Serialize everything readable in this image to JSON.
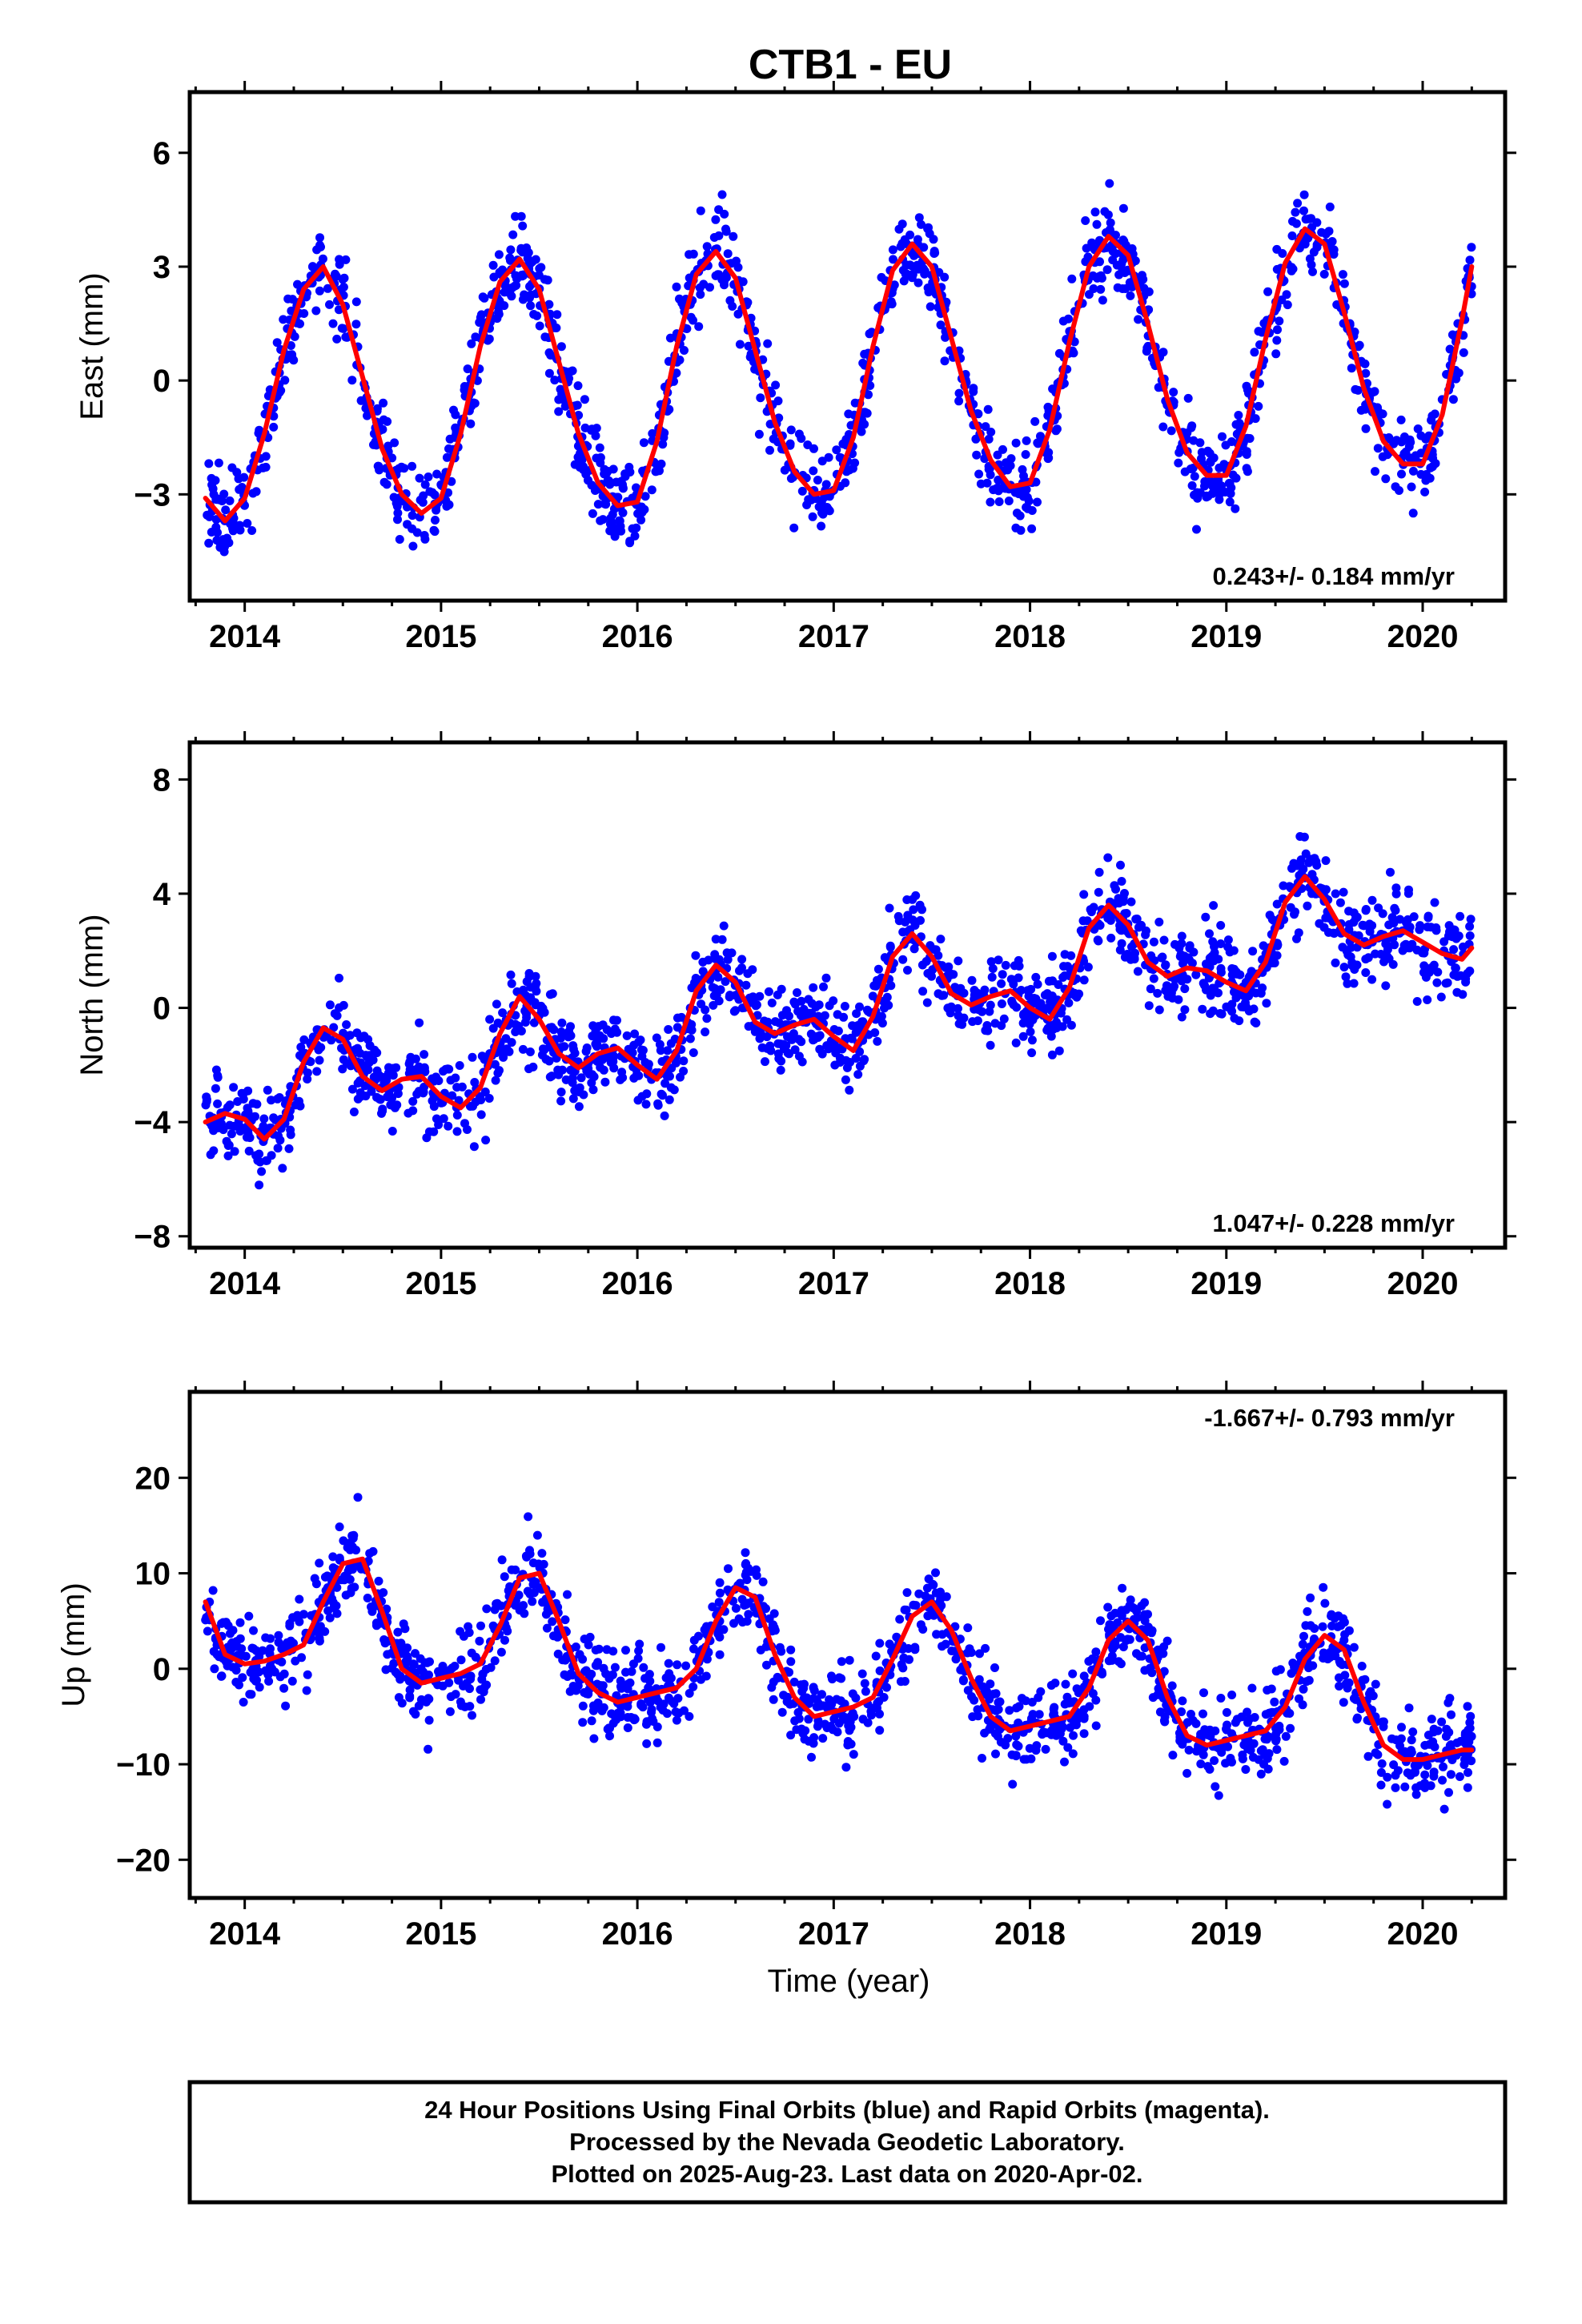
{
  "title": "CTB1 - EU",
  "x_axis_label": "Time (year)",
  "footer": {
    "line1": "24 Hour Positions Using Final Orbits (blue) and Rapid Orbits (magenta).",
    "line2": "Processed by the Nevada Geodetic Laboratory.",
    "line3": "Plotted on 2025-Aug-23. Last data on 2020-Apr-02."
  },
  "colors": {
    "data_points": "#0000ff",
    "model_fit": "#ff0000",
    "frame": "#000000"
  },
  "chart_data": [
    {
      "type": "scatter",
      "component": "East",
      "ylabel": "East (mm)",
      "xlim": [
        2013.72,
        2020.42
      ],
      "ylim": [
        -5.8,
        7.6
      ],
      "yticks": [
        -3,
        0,
        3,
        6
      ],
      "xticks": [
        2014,
        2015,
        2016,
        2017,
        2018,
        2019,
        2020
      ],
      "grid": false,
      "rate_text": "0.243+/- 0.184 mm/yr",
      "rate_position": "bottom-right",
      "series": [
        {
          "kind": "points",
          "x": [
            2013.8,
            2013.9,
            2014.0,
            2014.1,
            2014.2,
            2014.3,
            2014.4,
            2014.5,
            2014.6,
            2014.7,
            2014.8,
            2014.9,
            2015.0,
            2015.1,
            2015.2,
            2015.3,
            2015.4,
            2015.5,
            2015.6,
            2015.7,
            2015.8,
            2015.9,
            2016.0,
            2016.1,
            2016.2,
            2016.3,
            2016.4,
            2016.5,
            2016.6,
            2016.7,
            2016.8,
            2016.9,
            2017.0,
            2017.1,
            2017.2,
            2017.3,
            2017.4,
            2017.5,
            2017.6,
            2017.7,
            2017.8,
            2017.9,
            2018.0,
            2018.1,
            2018.2,
            2018.3,
            2018.4,
            2018.5,
            2018.6,
            2018.7,
            2018.8,
            2018.9,
            2019.0,
            2019.1,
            2019.2,
            2019.3,
            2019.4,
            2019.5,
            2019.6,
            2019.7,
            2019.8,
            2019.9,
            2020.0,
            2020.1,
            2020.2,
            2020.25
          ],
          "y": [
            -3.1,
            -3.7,
            -3.1,
            -1.4,
            0.8,
            2.4,
            3.0,
            2.0,
            0.1,
            -1.8,
            -3.0,
            -3.5,
            -3.1,
            -1.4,
            0.9,
            2.6,
            3.2,
            2.4,
            0.5,
            -1.4,
            -2.7,
            -3.3,
            -3.2,
            -1.6,
            0.9,
            2.8,
            3.4,
            2.7,
            0.8,
            -1.1,
            -2.4,
            -3.0,
            -2.9,
            -1.5,
            0.9,
            2.9,
            3.6,
            3.0,
            1.1,
            -0.8,
            -2.1,
            -2.8,
            -2.7,
            -1.3,
            1.0,
            3.0,
            3.8,
            3.3,
            1.5,
            -0.5,
            -1.9,
            -2.5,
            -2.5,
            -1.2,
            1.1,
            3.1,
            4.0,
            3.6,
            1.8,
            -0.2,
            -1.6,
            -2.2,
            -2.2,
            -0.9,
            1.6,
            3.0
          ]
        },
        {
          "kind": "model",
          "x": [
            2013.8,
            2013.9,
            2014.0,
            2014.1,
            2014.2,
            2014.3,
            2014.4,
            2014.5,
            2014.6,
            2014.7,
            2014.8,
            2014.9,
            2015.0,
            2015.1,
            2015.2,
            2015.3,
            2015.4,
            2015.5,
            2015.6,
            2015.7,
            2015.8,
            2015.9,
            2016.0,
            2016.1,
            2016.2,
            2016.3,
            2016.4,
            2016.5,
            2016.6,
            2016.7,
            2016.8,
            2016.9,
            2017.0,
            2017.1,
            2017.2,
            2017.3,
            2017.4,
            2017.5,
            2017.6,
            2017.7,
            2017.8,
            2017.9,
            2018.0,
            2018.1,
            2018.2,
            2018.3,
            2018.4,
            2018.5,
            2018.6,
            2018.7,
            2018.8,
            2018.9,
            2019.0,
            2019.1,
            2019.2,
            2019.3,
            2019.4,
            2019.5,
            2019.6,
            2019.7,
            2019.8,
            2019.9,
            2020.0,
            2020.1,
            2020.2,
            2020.25
          ],
          "y": [
            -3.1,
            -3.7,
            -3.1,
            -1.4,
            0.8,
            2.4,
            3.0,
            2.0,
            0.1,
            -1.8,
            -3.0,
            -3.5,
            -3.1,
            -1.4,
            0.9,
            2.6,
            3.2,
            2.4,
            0.5,
            -1.4,
            -2.7,
            -3.3,
            -3.2,
            -1.6,
            0.9,
            2.8,
            3.4,
            2.7,
            0.8,
            -1.1,
            -2.4,
            -3.0,
            -2.9,
            -1.5,
            0.9,
            2.9,
            3.6,
            3.0,
            1.1,
            -0.8,
            -2.1,
            -2.8,
            -2.7,
            -1.3,
            1.0,
            3.0,
            3.8,
            3.3,
            1.5,
            -0.5,
            -1.9,
            -2.5,
            -2.5,
            -1.2,
            1.1,
            3.1,
            4.0,
            3.6,
            1.8,
            -0.2,
            -1.6,
            -2.2,
            -2.2,
            -0.9,
            1.6,
            3.0
          ]
        }
      ]
    },
    {
      "type": "scatter",
      "component": "North",
      "ylabel": "North (mm)",
      "xlim": [
        2013.72,
        2020.42
      ],
      "ylim": [
        -8.4,
        9.3
      ],
      "yticks": [
        -8,
        -4,
        0,
        4,
        8
      ],
      "xticks": [
        2014,
        2015,
        2016,
        2017,
        2018,
        2019,
        2020
      ],
      "grid": false,
      "rate_text": "1.047+/- 0.228 mm/yr",
      "rate_position": "bottom-right",
      "series": [
        {
          "kind": "points",
          "x": [
            2013.8,
            2013.9,
            2014.0,
            2014.1,
            2014.2,
            2014.3,
            2014.4,
            2014.5,
            2014.6,
            2014.7,
            2014.8,
            2014.9,
            2015.0,
            2015.1,
            2015.2,
            2015.3,
            2015.4,
            2015.5,
            2015.6,
            2015.7,
            2015.8,
            2015.9,
            2016.0,
            2016.1,
            2016.2,
            2016.3,
            2016.4,
            2016.5,
            2016.6,
            2016.7,
            2016.8,
            2016.9,
            2017.0,
            2017.1,
            2017.2,
            2017.3,
            2017.4,
            2017.5,
            2017.6,
            2017.7,
            2017.8,
            2017.9,
            2018.0,
            2018.1,
            2018.2,
            2018.3,
            2018.4,
            2018.5,
            2018.6,
            2018.7,
            2018.8,
            2018.9,
            2019.0,
            2019.1,
            2019.2,
            2019.3,
            2019.4,
            2019.5,
            2019.6,
            2019.7,
            2019.8,
            2019.9,
            2020.0,
            2020.1,
            2020.2,
            2020.25
          ],
          "y": [
            -4.0,
            -3.7,
            -3.9,
            -4.6,
            -3.9,
            -1.9,
            -0.7,
            -1.1,
            -2.4,
            -2.9,
            -2.5,
            -2.4,
            -3.1,
            -3.5,
            -2.8,
            -0.9,
            0.4,
            -0.4,
            -1.6,
            -2.1,
            -1.6,
            -1.4,
            -2.0,
            -2.5,
            -1.5,
            0.6,
            1.5,
            0.9,
            -0.5,
            -0.9,
            -0.6,
            -0.4,
            -1.0,
            -1.5,
            -0.3,
            1.8,
            2.6,
            1.8,
            0.5,
            0.1,
            0.4,
            0.6,
            0.0,
            -0.4,
            0.7,
            2.8,
            3.6,
            2.9,
            1.6,
            1.1,
            1.4,
            1.3,
            0.9,
            0.6,
            1.6,
            3.7,
            4.6,
            3.8,
            2.6,
            2.2,
            2.5,
            2.7,
            2.3,
            1.9,
            1.7,
            2.1
          ]
        },
        {
          "kind": "model",
          "x": [
            2013.8,
            2013.9,
            2014.0,
            2014.1,
            2014.2,
            2014.3,
            2014.4,
            2014.5,
            2014.6,
            2014.7,
            2014.8,
            2014.9,
            2015.0,
            2015.1,
            2015.2,
            2015.3,
            2015.4,
            2015.5,
            2015.6,
            2015.7,
            2015.8,
            2015.9,
            2016.0,
            2016.1,
            2016.2,
            2016.3,
            2016.4,
            2016.5,
            2016.6,
            2016.7,
            2016.8,
            2016.9,
            2017.0,
            2017.1,
            2017.2,
            2017.3,
            2017.4,
            2017.5,
            2017.6,
            2017.7,
            2017.8,
            2017.9,
            2018.0,
            2018.1,
            2018.2,
            2018.3,
            2018.4,
            2018.5,
            2018.6,
            2018.7,
            2018.8,
            2018.9,
            2019.0,
            2019.1,
            2019.2,
            2019.3,
            2019.4,
            2019.5,
            2019.6,
            2019.7,
            2019.8,
            2019.9,
            2020.0,
            2020.1,
            2020.2,
            2020.25
          ],
          "y": [
            -4.0,
            -3.7,
            -3.9,
            -4.6,
            -3.9,
            -1.9,
            -0.7,
            -1.1,
            -2.4,
            -2.9,
            -2.5,
            -2.4,
            -3.1,
            -3.5,
            -2.8,
            -0.9,
            0.4,
            -0.4,
            -1.6,
            -2.1,
            -1.6,
            -1.4,
            -2.0,
            -2.5,
            -1.5,
            0.6,
            1.5,
            0.9,
            -0.5,
            -0.9,
            -0.6,
            -0.4,
            -1.0,
            -1.5,
            -0.3,
            1.8,
            2.6,
            1.8,
            0.5,
            0.1,
            0.4,
            0.6,
            0.0,
            -0.4,
            0.7,
            2.8,
            3.6,
            2.9,
            1.6,
            1.1,
            1.4,
            1.3,
            0.9,
            0.6,
            1.6,
            3.7,
            4.6,
            3.8,
            2.6,
            2.2,
            2.5,
            2.7,
            2.3,
            1.9,
            1.7,
            2.1
          ]
        }
      ]
    },
    {
      "type": "scatter",
      "component": "Up",
      "ylabel": "Up (mm)",
      "xlim": [
        2013.72,
        2020.42
      ],
      "ylim": [
        -24,
        29
      ],
      "yticks": [
        -20,
        -10,
        0,
        10,
        20
      ],
      "xticks": [
        2014,
        2015,
        2016,
        2017,
        2018,
        2019,
        2020
      ],
      "grid": false,
      "rate_text": "-1.667+/- 0.793 mm/yr",
      "rate_position": "top-right",
      "series": [
        {
          "kind": "points",
          "x": [
            2013.8,
            2013.9,
            2014.0,
            2014.1,
            2014.2,
            2014.3,
            2014.4,
            2014.5,
            2014.6,
            2014.7,
            2014.8,
            2014.9,
            2015.0,
            2015.1,
            2015.2,
            2015.3,
            2015.4,
            2015.5,
            2015.6,
            2015.7,
            2015.8,
            2015.9,
            2016.0,
            2016.1,
            2016.2,
            2016.3,
            2016.4,
            2016.5,
            2016.6,
            2016.7,
            2016.8,
            2016.9,
            2017.0,
            2017.1,
            2017.2,
            2017.3,
            2017.4,
            2017.5,
            2017.6,
            2017.7,
            2017.8,
            2017.9,
            2018.0,
            2018.1,
            2018.2,
            2018.3,
            2018.4,
            2018.5,
            2018.6,
            2018.7,
            2018.8,
            2018.9,
            2019.0,
            2019.1,
            2019.2,
            2019.3,
            2019.4,
            2019.5,
            2019.6,
            2019.7,
            2019.8,
            2019.9,
            2020.0,
            2020.1,
            2020.2,
            2020.25
          ],
          "y": [
            7.0,
            1.5,
            0.5,
            0.8,
            1.5,
            2.5,
            7.0,
            11.0,
            11.5,
            6.0,
            0.0,
            -1.5,
            -1.0,
            -0.5,
            0.5,
            4.5,
            9.5,
            10.0,
            5.0,
            -0.5,
            -2.5,
            -3.5,
            -3.0,
            -2.5,
            -2.0,
            0.0,
            5.0,
            8.5,
            7.5,
            1.5,
            -3.0,
            -5.0,
            -4.5,
            -4.0,
            -3.0,
            1.0,
            5.5,
            7.0,
            4.0,
            -1.0,
            -5.0,
            -6.5,
            -6.0,
            -5.5,
            -5.0,
            -2.0,
            3.0,
            5.0,
            3.0,
            -3.0,
            -7.0,
            -8.0,
            -7.5,
            -7.0,
            -6.5,
            -4.0,
            1.0,
            3.5,
            2.0,
            -3.5,
            -8.0,
            -9.5,
            -9.5,
            -9.0,
            -8.5,
            -8.5
          ]
        },
        {
          "kind": "model",
          "x": [
            2013.8,
            2013.9,
            2014.0,
            2014.1,
            2014.2,
            2014.3,
            2014.4,
            2014.5,
            2014.6,
            2014.7,
            2014.8,
            2014.9,
            2015.0,
            2015.1,
            2015.2,
            2015.3,
            2015.4,
            2015.5,
            2015.6,
            2015.7,
            2015.8,
            2015.9,
            2016.0,
            2016.1,
            2016.2,
            2016.3,
            2016.4,
            2016.5,
            2016.6,
            2016.7,
            2016.8,
            2016.9,
            2017.0,
            2017.1,
            2017.2,
            2017.3,
            2017.4,
            2017.5,
            2017.6,
            2017.7,
            2017.8,
            2017.9,
            2018.0,
            2018.1,
            2018.2,
            2018.3,
            2018.4,
            2018.5,
            2018.6,
            2018.7,
            2018.8,
            2018.9,
            2019.0,
            2019.1,
            2019.2,
            2019.3,
            2019.4,
            2019.5,
            2019.6,
            2019.7,
            2019.8,
            2019.9,
            2020.0,
            2020.1,
            2020.2,
            2020.25
          ],
          "y": [
            7.0,
            1.5,
            0.5,
            0.8,
            1.5,
            2.5,
            7.0,
            11.0,
            11.5,
            6.0,
            0.0,
            -1.5,
            -1.0,
            -0.5,
            0.5,
            4.5,
            9.5,
            10.0,
            5.0,
            -0.5,
            -2.5,
            -3.5,
            -3.0,
            -2.5,
            -2.0,
            0.0,
            5.0,
            8.5,
            7.5,
            1.5,
            -3.0,
            -5.0,
            -4.5,
            -4.0,
            -3.0,
            1.0,
            5.5,
            7.0,
            4.0,
            -1.0,
            -5.0,
            -6.5,
            -6.0,
            -5.5,
            -5.0,
            -2.0,
            3.0,
            5.0,
            3.0,
            -3.0,
            -7.0,
            -8.0,
            -7.5,
            -7.0,
            -6.5,
            -4.0,
            1.0,
            3.5,
            2.0,
            -3.5,
            -8.0,
            -9.5,
            -9.5,
            -9.0,
            -8.5,
            -8.5
          ]
        }
      ]
    }
  ]
}
